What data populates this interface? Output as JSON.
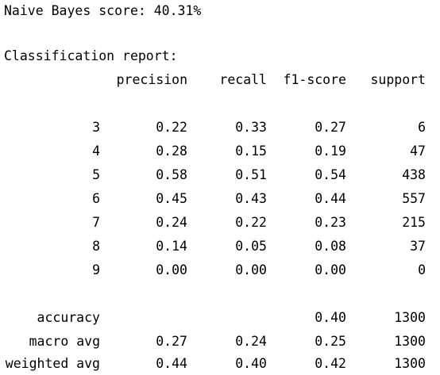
{
  "score_line": "Naive Bayes score: 40.31%",
  "report_title": "Classification report:",
  "headers": {
    "precision": "precision",
    "recall": "recall",
    "f1": "f1-score",
    "support": "support"
  },
  "class_rows": [
    {
      "label": "3",
      "precision": "0.22",
      "recall": "0.33",
      "f1": "0.27",
      "support": "6"
    },
    {
      "label": "4",
      "precision": "0.28",
      "recall": "0.15",
      "f1": "0.19",
      "support": "47"
    },
    {
      "label": "5",
      "precision": "0.58",
      "recall": "0.51",
      "f1": "0.54",
      "support": "438"
    },
    {
      "label": "6",
      "precision": "0.45",
      "recall": "0.43",
      "f1": "0.44",
      "support": "557"
    },
    {
      "label": "7",
      "precision": "0.24",
      "recall": "0.22",
      "f1": "0.23",
      "support": "215"
    },
    {
      "label": "8",
      "precision": "0.14",
      "recall": "0.05",
      "f1": "0.08",
      "support": "37"
    },
    {
      "label": "9",
      "precision": "0.00",
      "recall": "0.00",
      "f1": "0.00",
      "support": "0"
    }
  ],
  "summary_rows": {
    "accuracy": {
      "label": "accuracy",
      "f1": "0.40",
      "support": "1300"
    },
    "macro": {
      "label": "macro avg",
      "precision": "0.27",
      "recall": "0.24",
      "f1": "0.25",
      "support": "1300"
    },
    "weighted": {
      "label": "weighted avg",
      "precision": "0.44",
      "recall": "0.40",
      "f1": "0.42",
      "support": "1300"
    }
  }
}
